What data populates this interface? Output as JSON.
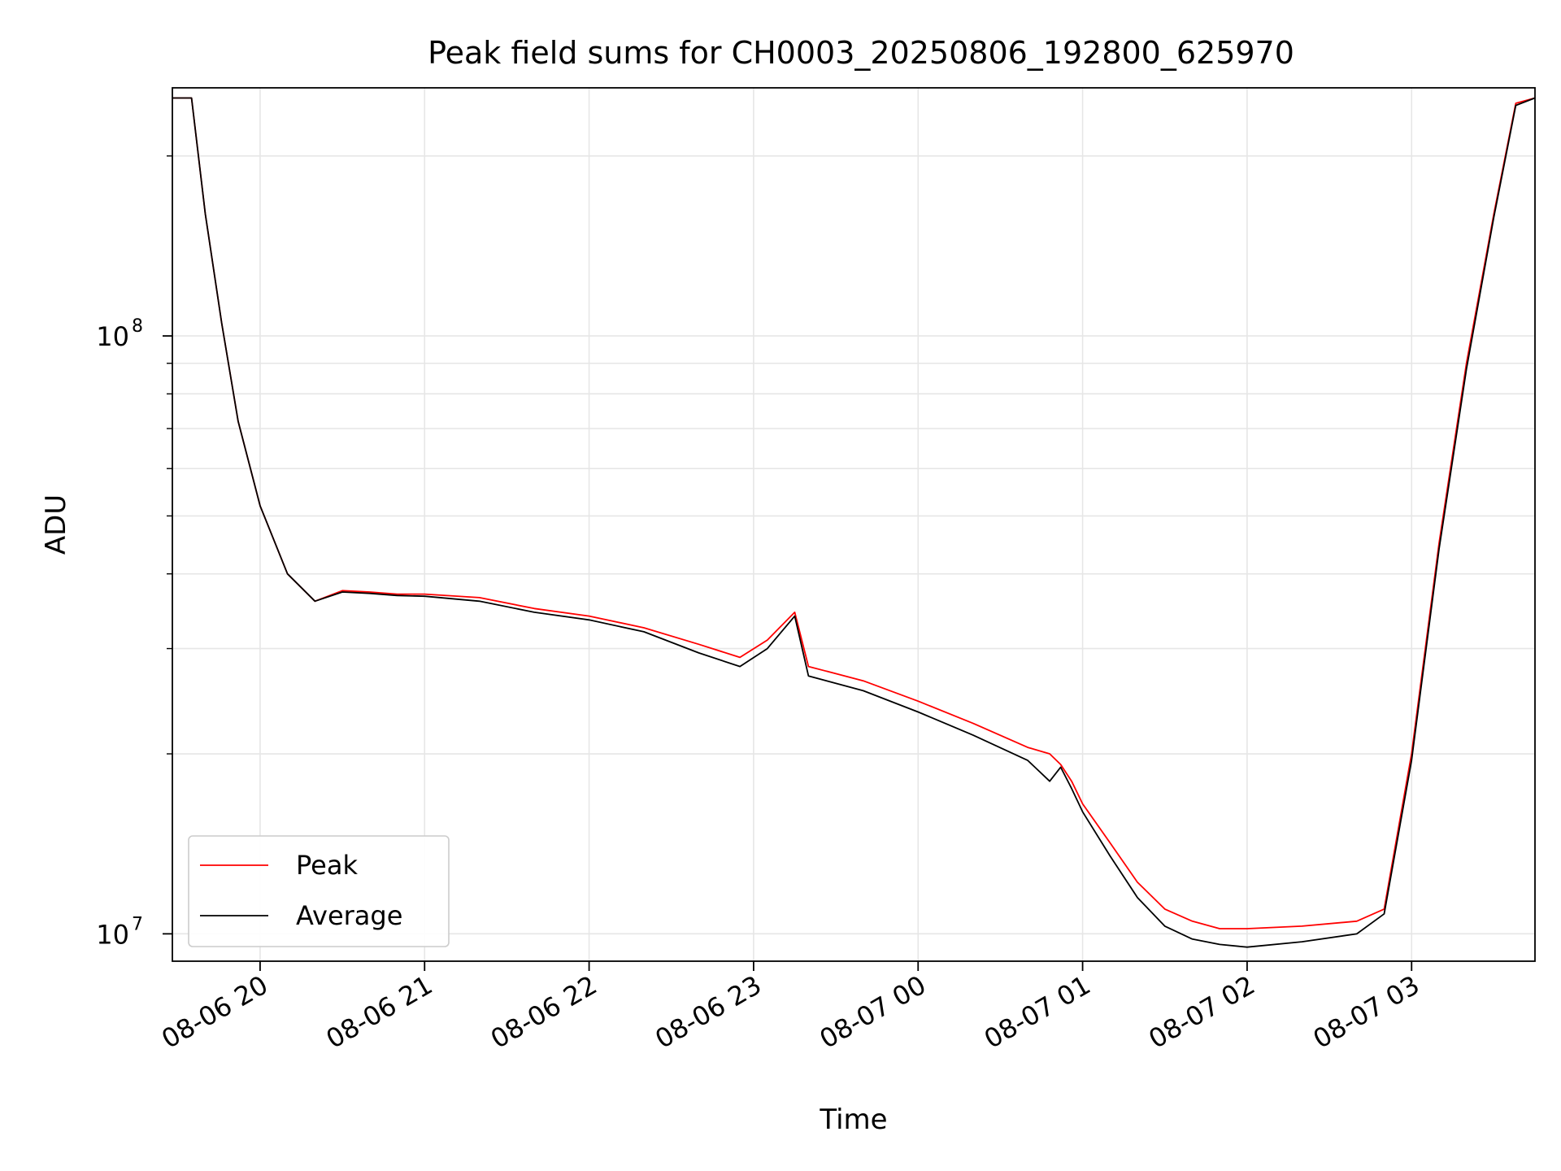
{
  "chart_data": {
    "type": "line",
    "title": "Peak field sums for CH0003_20250806_192800_625970",
    "xlabel": "Time",
    "ylabel": "ADU",
    "yscale": "log",
    "ylim": [
      9000000,
      260000000
    ],
    "xlim": [
      "2025-08-06 19:28",
      "2025-08-07 03:45"
    ],
    "grid": true,
    "legend_position": "lower-left",
    "x_tick_labels": [
      "08-06 20",
      "08-06 21",
      "08-06 22",
      "08-06 23",
      "08-07 00",
      "08-07 01",
      "08-07 02",
      "08-07 03"
    ],
    "x_tick_times": [
      "2025-08-06 20:00",
      "2025-08-06 21:00",
      "2025-08-06 22:00",
      "2025-08-06 23:00",
      "2025-08-07 00:00",
      "2025-08-07 01:00",
      "2025-08-07 02:00",
      "2025-08-07 03:00"
    ],
    "y_major_ticks": [
      {
        "value": 10000000,
        "base": "10",
        "exp": "7"
      },
      {
        "value": 100000000,
        "base": "10",
        "exp": "8"
      }
    ],
    "y_minor_ticks": [
      20000000,
      30000000,
      40000000,
      50000000,
      60000000,
      70000000,
      80000000,
      90000000,
      200000000
    ],
    "x": [
      "2025-08-06 19:28",
      "2025-08-06 19:35",
      "2025-08-06 19:40",
      "2025-08-06 19:46",
      "2025-08-06 19:52",
      "2025-08-06 20:00",
      "2025-08-06 20:10",
      "2025-08-06 20:20",
      "2025-08-06 20:30",
      "2025-08-06 20:40",
      "2025-08-06 20:50",
      "2025-08-06 21:00",
      "2025-08-06 21:20",
      "2025-08-06 21:40",
      "2025-08-06 22:00",
      "2025-08-06 22:20",
      "2025-08-06 22:40",
      "2025-08-06 22:55",
      "2025-08-06 23:05",
      "2025-08-06 23:15",
      "2025-08-06 23:20",
      "2025-08-06 23:40",
      "2025-08-07 00:00",
      "2025-08-07 00:20",
      "2025-08-07 00:40",
      "2025-08-07 00:48",
      "2025-08-07 00:52",
      "2025-08-07 00:56",
      "2025-08-07 01:00",
      "2025-08-07 01:10",
      "2025-08-07 01:20",
      "2025-08-07 01:30",
      "2025-08-07 01:40",
      "2025-08-07 01:50",
      "2025-08-07 02:00",
      "2025-08-07 02:20",
      "2025-08-07 02:40",
      "2025-08-07 02:50",
      "2025-08-07 03:00",
      "2025-08-07 03:10",
      "2025-08-07 03:20",
      "2025-08-07 03:30",
      "2025-08-07 03:38",
      "2025-08-07 03:45"
    ],
    "series": [
      {
        "name": "Peak",
        "color": "#ff0000",
        "values": [
          250000000,
          250000000,
          160000000,
          105000000,
          72000000,
          52000000,
          40000000,
          36000000,
          37500000,
          37300000,
          37000000,
          37000000,
          36500000,
          35000000,
          34000000,
          32500000,
          30500000,
          29000000,
          31000000,
          34500000,
          28000000,
          26500000,
          24500000,
          22500000,
          20500000,
          20000000,
          19200000,
          18000000,
          16500000,
          14200000,
          12200000,
          11000000,
          10500000,
          10200000,
          10200000,
          10300000,
          10500000,
          11000000,
          20000000,
          45000000,
          90000000,
          160000000,
          245000000,
          250000000
        ]
      },
      {
        "name": "Average",
        "color": "#000000",
        "values": [
          250000000,
          250000000,
          160000000,
          105000000,
          72000000,
          52000000,
          40000000,
          36000000,
          37300000,
          37100000,
          36800000,
          36700000,
          36000000,
          34500000,
          33500000,
          32000000,
          29500000,
          28000000,
          30000000,
          34000000,
          27000000,
          25500000,
          23500000,
          21500000,
          19500000,
          18000000,
          19000000,
          17500000,
          16000000,
          13500000,
          11500000,
          10300000,
          9800000,
          9600000,
          9500000,
          9700000,
          10000000,
          10800000,
          19500000,
          44000000,
          88000000,
          158000000,
          243000000,
          250000000
        ]
      }
    ]
  }
}
